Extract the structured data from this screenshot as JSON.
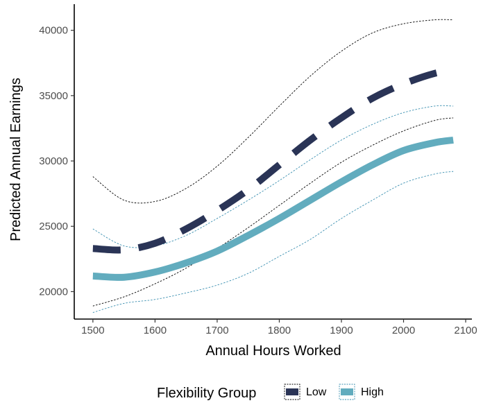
{
  "chart_data": {
    "type": "line",
    "title": "",
    "xlabel": "Annual Hours Worked",
    "ylabel": "Predicted Annual Earnings",
    "xlim": [
      1470,
      2110
    ],
    "ylim": [
      17900,
      42000
    ],
    "x_ticks": [
      1500,
      1600,
      1700,
      1800,
      1900,
      2000,
      2100
    ],
    "y_ticks": [
      20000,
      25000,
      30000,
      35000,
      40000
    ],
    "x_tick_labels": [
      "1500",
      "1600",
      "1700",
      "1800",
      "1900",
      "2000",
      "2100"
    ],
    "y_tick_labels": [
      "20000",
      "25000",
      "30000",
      "35000",
      "40000"
    ],
    "grid": false,
    "legend": {
      "title": "Flexibility Group",
      "position": "bottom"
    },
    "x": [
      1500,
      1550,
      1600,
      1650,
      1700,
      1750,
      1800,
      1850,
      1900,
      1950,
      2000,
      2050,
      2080
    ],
    "series": [
      {
        "name": "Low",
        "color": "#2a3456",
        "style": "dashed",
        "values": [
          23300,
          23200,
          23700,
          24800,
          26200,
          27800,
          29700,
          31600,
          33300,
          34800,
          35900,
          36700,
          36900
        ],
        "lower": [
          18900,
          19600,
          20600,
          21800,
          23300,
          24900,
          26600,
          28300,
          29900,
          31200,
          32300,
          33100,
          33300
        ],
        "upper": [
          28800,
          27000,
          26900,
          27900,
          29600,
          31800,
          34200,
          36500,
          38400,
          39800,
          40500,
          40800,
          40800
        ]
      },
      {
        "name": "High",
        "color": "#62acbe",
        "style": "solid",
        "values": [
          21200,
          21100,
          21500,
          22200,
          23100,
          24300,
          25600,
          27000,
          28400,
          29700,
          30800,
          31400,
          31600
        ],
        "lower": [
          18400,
          19100,
          19400,
          19900,
          20500,
          21400,
          22700,
          24000,
          25600,
          27000,
          28300,
          29000,
          29200
        ],
        "upper": [
          24800,
          23500,
          23500,
          24300,
          25600,
          27000,
          28500,
          30100,
          31600,
          32800,
          33700,
          34200,
          34200
        ]
      }
    ]
  }
}
